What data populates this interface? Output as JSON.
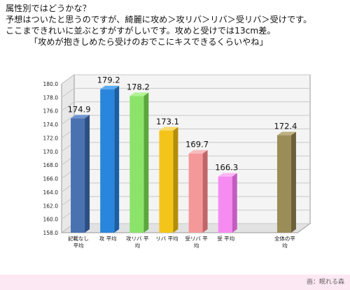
{
  "intro": {
    "lines": [
      "属性別ではどうかな？",
      "予想はついたと思うのですが、綺麗に攻め＞攻リバ＞リバ＞受リバ＞受けです。",
      "ここまできれいに並ぶとすがすがしいです。攻めと受けでは13cm差。",
      "「攻めが抱きしめたら受けのおでこにキスできるくらいやね」"
    ]
  },
  "chart_data": {
    "type": "bar",
    "title": "",
    "xlabel": "",
    "ylabel": "",
    "ylim": [
      158.0,
      180.0
    ],
    "yticks": [
      "158.0",
      "160.0",
      "162.0",
      "164.0",
      "166.0",
      "168.0",
      "170.0",
      "172.0",
      "174.0",
      "176.0",
      "178.0",
      "180.0"
    ],
    "grid": true,
    "categories": [
      {
        "label": [
          "記載なし",
          "平均"
        ],
        "value": 174.9,
        "value_label": "174.9",
        "color": "#4a72b0",
        "dark": "#2e4f84",
        "top": "#6f93cf"
      },
      {
        "label": [
          "攻 平均"
        ],
        "value": 179.2,
        "value_label": "179.2",
        "color": "#2a86dc",
        "dark": "#1a5fa4",
        "top": "#5aaaf0"
      },
      {
        "label": [
          "攻リバ 平",
          "均"
        ],
        "value": 178.2,
        "value_label": "178.2",
        "color": "#8ce36a",
        "dark": "#5aa83c",
        "top": "#b2f296"
      },
      {
        "label": [
          "リバ 平均"
        ],
        "value": 173.1,
        "value_label": "173.1",
        "color": "#f3c51a",
        "dark": "#b48e08",
        "top": "#f9dc68"
      },
      {
        "label": [
          "受リバ 平",
          "均"
        ],
        "value": 169.7,
        "value_label": "169.7",
        "color": "#f4989a",
        "dark": "#c06668",
        "top": "#f8bcbd"
      },
      {
        "label": [
          "受 平均"
        ],
        "value": 166.3,
        "value_label": "166.3",
        "color": "#f68bf2",
        "dark": "#c45cbf",
        "top": "#fab6f7"
      },
      {
        "label": [
          "全体の平",
          "均"
        ],
        "value": 172.4,
        "value_label": "172.4",
        "color": "#9b8d58",
        "dark": "#6b603a",
        "top": "#bcb081",
        "gap_before": true
      }
    ]
  },
  "credit": "画：眠れる森",
  "colors": {
    "footer_band": "#fce8f3",
    "plot_wall": "#f4f4f4",
    "grid": "#c8c8c8"
  }
}
